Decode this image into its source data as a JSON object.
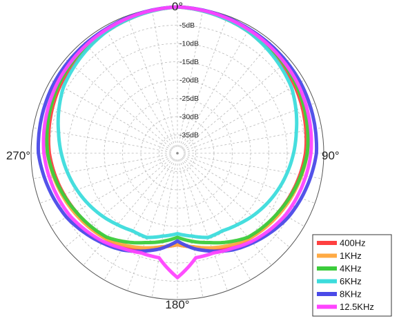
{
  "chart_data": {
    "type": "polar",
    "angle_labels": [
      {
        "angle": 0,
        "text": "0°"
      },
      {
        "angle": 90,
        "text": "90°"
      },
      {
        "angle": 180,
        "text": "180°"
      },
      {
        "angle": 270,
        "text": "270°"
      }
    ],
    "db_range": [
      -40,
      0
    ],
    "rings_db": [
      -5,
      -10,
      -15,
      -20,
      -25,
      -30,
      -35
    ],
    "ring_labels": [
      "-5dB",
      "-10dB",
      "-15dB",
      "-20dB",
      "-25dB",
      "-30dB",
      "-35dB"
    ],
    "spoke_step_deg": 10,
    "legend_position": "bottom-right",
    "series": [
      {
        "name": "400Hz",
        "color": "#ff4040",
        "angles": [
          0,
          30,
          60,
          90,
          120,
          140,
          150,
          160,
          170,
          180
        ],
        "db": [
          0,
          -1.5,
          -3,
          -5,
          -8,
          -9.5,
          -10.5,
          -12,
          -14,
          -15
        ]
      },
      {
        "name": "1KHz",
        "color": "#ffaa44",
        "angles": [
          0,
          30,
          60,
          90,
          120,
          140,
          150,
          160,
          170,
          180
        ],
        "db": [
          0,
          -1,
          -2.5,
          -4.5,
          -7.5,
          -9.5,
          -11,
          -12.5,
          -14,
          -15
        ]
      },
      {
        "name": "4KHz",
        "color": "#3ccc3c",
        "angles": [
          0,
          30,
          60,
          90,
          120,
          140,
          150,
          160,
          170,
          180
        ],
        "db": [
          0,
          -1,
          -2.5,
          -4.5,
          -8,
          -10,
          -12,
          -14,
          -15.5,
          -17
        ]
      },
      {
        "name": "6KHz",
        "color": "#3cdcdc",
        "angles": [
          0,
          30,
          60,
          80,
          100,
          120,
          140,
          150,
          160,
          170,
          180
        ],
        "db": [
          0,
          -1.5,
          -4,
          -7,
          -9.5,
          -12,
          -14.5,
          -15.5,
          -15.5,
          -17,
          -18
        ]
      },
      {
        "name": "8KHz",
        "color": "#4a4ae8",
        "angles": [
          0,
          30,
          60,
          90,
          120,
          140,
          150,
          160,
          170,
          180
        ],
        "db": [
          0,
          -0.8,
          -1.2,
          -2,
          -5,
          -8,
          -9.5,
          -11.5,
          -13.5,
          -16
        ]
      },
      {
        "name": "12.5KHz",
        "color": "#ff44ff",
        "angles": [
          0,
          30,
          60,
          90,
          120,
          140,
          150,
          160,
          170,
          180
        ],
        "db": [
          0,
          -1,
          -2,
          -3.5,
          -6,
          -8.5,
          -10,
          -11,
          -11,
          -6
        ]
      }
    ]
  }
}
